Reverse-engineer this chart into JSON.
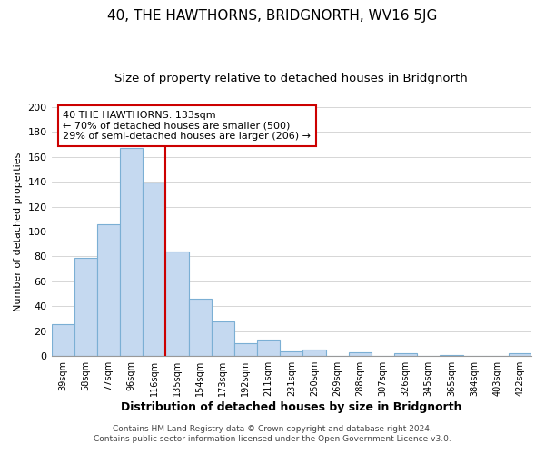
{
  "title": "40, THE HAWTHORNS, BRIDGNORTH, WV16 5JG",
  "subtitle": "Size of property relative to detached houses in Bridgnorth",
  "xlabel": "Distribution of detached houses by size in Bridgnorth",
  "ylabel": "Number of detached properties",
  "bar_labels": [
    "39sqm",
    "58sqm",
    "77sqm",
    "96sqm",
    "116sqm",
    "135sqm",
    "154sqm",
    "173sqm",
    "192sqm",
    "211sqm",
    "231sqm",
    "250sqm",
    "269sqm",
    "288sqm",
    "307sqm",
    "326sqm",
    "345sqm",
    "365sqm",
    "384sqm",
    "403sqm",
    "422sqm"
  ],
  "bar_values": [
    26,
    79,
    106,
    167,
    139,
    84,
    46,
    28,
    10,
    13,
    4,
    5,
    0,
    3,
    0,
    2,
    0,
    1,
    0,
    0,
    2
  ],
  "bar_color": "#c5d9f0",
  "bar_edge_color": "#7bafd4",
  "reference_line_x": 4.5,
  "reference_line_color": "#cc0000",
  "annotation_box_text": "40 THE HAWTHORNS: 133sqm\n← 70% of detached houses are smaller (500)\n29% of semi-detached houses are larger (206) →",
  "annotation_box_edge_color": "#cc0000",
  "ylim": [
    0,
    200
  ],
  "yticks": [
    0,
    20,
    40,
    60,
    80,
    100,
    120,
    140,
    160,
    180,
    200
  ],
  "background_color": "#ffffff",
  "footer_line1": "Contains HM Land Registry data © Crown copyright and database right 2024.",
  "footer_line2": "Contains public sector information licensed under the Open Government Licence v3.0.",
  "title_fontsize": 11,
  "subtitle_fontsize": 9.5,
  "xlabel_fontsize": 9,
  "ylabel_fontsize": 8,
  "annotation_fontsize": 8,
  "footer_fontsize": 6.5
}
